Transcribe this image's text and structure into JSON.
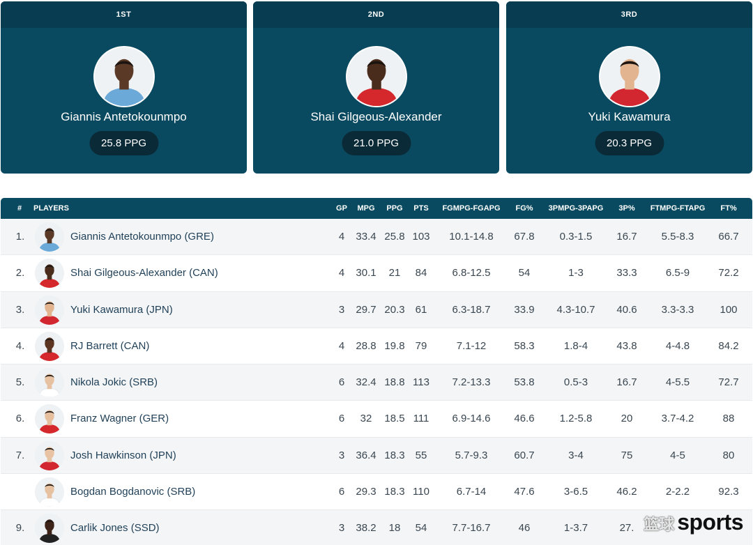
{
  "podium": [
    {
      "rank": "1ST",
      "name": "Giannis Antetokounmpo",
      "ppg": "25.8 PPG",
      "jersey": "HELLAS",
      "jersey_color": "#6aa9d8",
      "skin": "#5a3a26"
    },
    {
      "rank": "2ND",
      "name": "Shai Gilgeous-Alexander",
      "ppg": "21.0 PPG",
      "jersey": "CANADA",
      "jersey_color": "#d5282d",
      "skin": "#4a2c1c"
    },
    {
      "rank": "3RD",
      "name": "Yuki Kawamura",
      "ppg": "20.3 PPG",
      "jersey": "JAPAN",
      "jersey_color": "#d22630",
      "skin": "#e2b48f"
    }
  ],
  "table": {
    "headers": {
      "rank": "#",
      "player": "PLAYERS",
      "gp": "GP",
      "mpg": "MPG",
      "ppg": "PPG",
      "pts": "PTS",
      "fg": "FGMPG-FGAPG",
      "fgp": "FG%",
      "tp": "3PMPG-3PAPG",
      "tpp": "3P%",
      "ft": "FTMPG-FTAPG",
      "ftp": "FT%"
    },
    "rows": [
      {
        "rank": "1.",
        "player": "Giannis Antetokounmpo (GRE)",
        "gp": "4",
        "mpg": "33.4",
        "ppg": "25.8",
        "pts": "103",
        "fg": "10.1-14.8",
        "fgp": "67.8",
        "tp": "0.3-1.5",
        "tpp": "16.7",
        "ft": "5.5-8.3",
        "ftp": "66.7",
        "jersey_color": "#6aa9d8",
        "skin": "#5a3a26"
      },
      {
        "rank": "2.",
        "player": "Shai Gilgeous-Alexander (CAN)",
        "gp": "4",
        "mpg": "30.1",
        "ppg": "21",
        "pts": "84",
        "fg": "6.8-12.5",
        "fgp": "54",
        "tp": "1-3",
        "tpp": "33.3",
        "ft": "6.5-9",
        "ftp": "72.2",
        "jersey_color": "#d5282d",
        "skin": "#4a2c1c"
      },
      {
        "rank": "3.",
        "player": "Yuki Kawamura (JPN)",
        "gp": "3",
        "mpg": "29.7",
        "ppg": "20.3",
        "pts": "61",
        "fg": "6.3-18.7",
        "fgp": "33.9",
        "tp": "4.3-10.7",
        "tpp": "40.6",
        "ft": "3.3-3.3",
        "ftp": "100",
        "jersey_color": "#d22630",
        "skin": "#e2b48f"
      },
      {
        "rank": "4.",
        "player": "RJ Barrett (CAN)",
        "gp": "4",
        "mpg": "28.8",
        "ppg": "19.8",
        "pts": "79",
        "fg": "7.1-12",
        "fgp": "58.3",
        "tp": "1.8-4",
        "tpp": "43.8",
        "ft": "4-4.8",
        "ftp": "84.2",
        "jersey_color": "#d5282d",
        "skin": "#5b3522"
      },
      {
        "rank": "5.",
        "player": "Nikola Jokic (SRB)",
        "gp": "6",
        "mpg": "32.4",
        "ppg": "18.8",
        "pts": "113",
        "fg": "7.2-13.3",
        "fgp": "53.8",
        "tp": "0.5-3",
        "tpp": "16.7",
        "ft": "4-5.5",
        "ftp": "72.7",
        "jersey_color": "#ffffff",
        "skin": "#e6c2a3"
      },
      {
        "rank": "6.",
        "player": "Franz Wagner (GER)",
        "gp": "6",
        "mpg": "32",
        "ppg": "18.5",
        "pts": "111",
        "fg": "6.9-14.6",
        "fgp": "46.6",
        "tp": "1.2-5.8",
        "tpp": "20",
        "ft": "3.7-4.2",
        "ftp": "88",
        "jersey_color": "#d5282d",
        "skin": "#e6bf9f"
      },
      {
        "rank": "7.",
        "player": "Josh Hawkinson (JPN)",
        "gp": "3",
        "mpg": "36.4",
        "ppg": "18.3",
        "pts": "55",
        "fg": "5.7-9.3",
        "fgp": "60.7",
        "tp": "3-4",
        "tpp": "75",
        "ft": "4-5",
        "ftp": "80",
        "jersey_color": "#d22630",
        "skin": "#e8c3a3"
      },
      {
        "rank": "",
        "player": "Bogdan Bogdanovic (SRB)",
        "gp": "6",
        "mpg": "29.3",
        "ppg": "18.3",
        "pts": "110",
        "fg": "6.7-14",
        "fgp": "47.6",
        "tp": "3-6.5",
        "tpp": "46.2",
        "ft": "2-2.2",
        "ftp": "92.3",
        "jersey_color": "#ffffff",
        "skin": "#e6c2a3"
      },
      {
        "rank": "9.",
        "player": "Carlik Jones (SSD)",
        "gp": "3",
        "mpg": "38.2",
        "ppg": "18",
        "pts": "54",
        "fg": "7.7-16.7",
        "fgp": "46",
        "tp": "1-3.7",
        "tpp": "27.",
        "ft": "",
        "ftp": "",
        "jersey_color": "#222222",
        "skin": "#3e2418"
      }
    ]
  },
  "watermark": {
    "cn": "篮球",
    "en": "sports"
  }
}
